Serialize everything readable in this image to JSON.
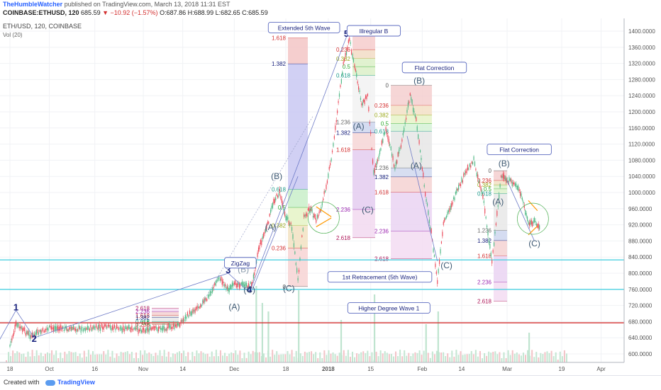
{
  "header": {
    "author": "TheHumbleWatcher",
    "published": "published on TradingView.com, March 13, 2018 11:31 EST",
    "symbol": "COINBASE:ETHUSD, 120",
    "price": "685.59",
    "change": "▼ −10.92 (−1.57%)",
    "ohlc": "O:687.86 H:688.99 L:682.65 C:685.59"
  },
  "legend": {
    "title": "ETH/USD, 120, COINBASE",
    "vol": "Vol (20)"
  },
  "footer": {
    "made_with": "Created with",
    "brand": "TradingView"
  },
  "colors": {
    "candle_up": "#53b987",
    "candle_down": "#eb4d5c",
    "wave_line": "#6e7bc7",
    "support_cyan": "#4dd0e1",
    "red_line": "#d32f2f",
    "fib_label_blue": "#1a237e"
  },
  "chart_data": {
    "type": "candlestick",
    "title": "ETH/USD, 120, COINBASE",
    "ylim": [
      560,
      1440
    ],
    "y_ticks": [
      "1400.0000",
      "1360.0000",
      "1320.0000",
      "1280.0000",
      "1240.0000",
      "1200.0000",
      "1160.0000",
      "1120.0000",
      "1080.0000",
      "1040.0000",
      "1000.0000",
      "960.0000",
      "920.0000",
      "880.0000",
      "840.0000",
      "800.0000",
      "760.0000",
      "720.0000",
      "680.0000",
      "640.0000",
      "600.0000"
    ],
    "x_ticks": [
      "18",
      "Oct",
      "16",
      "Nov",
      "14",
      "Dec",
      "18",
      "2018",
      "15",
      "Feb",
      "14",
      "Mar",
      "19",
      "Apr"
    ],
    "price_path": [
      [
        "2017-09-18",
        620
      ],
      [
        "2017-09-20",
        672
      ],
      [
        "2017-09-25",
        644
      ],
      [
        "2017-10-01",
        664
      ],
      [
        "2017-10-10",
        662
      ],
      [
        "2017-10-20",
        666
      ],
      [
        "2017-10-30",
        660
      ],
      [
        "2017-11-05",
        662
      ],
      [
        "2017-11-12",
        668
      ],
      [
        "2017-11-17",
        705
      ],
      [
        "2017-11-22",
        735
      ],
      [
        "2017-11-26",
        790
      ],
      [
        "2017-11-29",
        760
      ],
      [
        "2017-12-02",
        775
      ],
      [
        "2017-12-05",
        768
      ],
      [
        "2017-12-07",
        775
      ],
      [
        "2017-12-09",
        860
      ],
      [
        "2017-12-12",
        920
      ],
      [
        "2017-12-14",
        980
      ],
      [
        "2017-12-16",
        1000
      ],
      [
        "2017-12-18",
        940
      ],
      [
        "2017-12-20",
        915
      ],
      [
        "2017-12-22",
        780
      ],
      [
        "2017-12-24",
        940
      ],
      [
        "2017-12-26",
        960
      ],
      [
        "2017-12-28",
        930
      ],
      [
        "2017-12-30",
        970
      ],
      [
        "2018-01-02",
        1080
      ],
      [
        "2018-01-04",
        1200
      ],
      [
        "2018-01-06",
        1320
      ],
      [
        "2018-01-08",
        1380
      ],
      [
        "2018-01-10",
        1300
      ],
      [
        "2018-01-12",
        1220
      ],
      [
        "2018-01-14",
        1240
      ],
      [
        "2018-01-16",
        1050
      ],
      [
        "2018-01-18",
        1100
      ],
      [
        "2018-01-20",
        1160
      ],
      [
        "2018-01-23",
        1060
      ],
      [
        "2018-01-25",
        1120
      ],
      [
        "2018-01-28",
        1240
      ],
      [
        "2018-01-30",
        1180
      ],
      [
        "2018-02-02",
        1000
      ],
      [
        "2018-02-04",
        900
      ],
      [
        "2018-02-06",
        780
      ],
      [
        "2018-02-08",
        920
      ],
      [
        "2018-02-10",
        960
      ],
      [
        "2018-02-13",
        1010
      ],
      [
        "2018-02-16",
        1060
      ],
      [
        "2018-02-18",
        1080
      ],
      [
        "2018-02-21",
        990
      ],
      [
        "2018-02-24",
        830
      ],
      [
        "2018-02-27",
        1040
      ],
      [
        "2018-03-01",
        1030
      ],
      [
        "2018-03-04",
        1020
      ],
      [
        "2018-03-06",
        985
      ],
      [
        "2018-03-08",
        920
      ],
      [
        "2018-03-10",
        930
      ],
      [
        "2018-03-12",
        905
      ]
    ],
    "horizontal_lines": [
      {
        "price": 833,
        "color": "cyan"
      },
      {
        "price": 760,
        "color": "cyan"
      },
      {
        "price": 677,
        "color": "red"
      }
    ],
    "wave_labels": [
      {
        "text": "1",
        "date": "2017-09-20",
        "price": 708,
        "color": "#1a237e"
      },
      {
        "text": "2",
        "date": "2017-09-26",
        "price": 630,
        "color": "#1a237e"
      },
      {
        "text": "3",
        "date": "2017-11-29",
        "price": 800,
        "color": "#1a237e"
      },
      {
        "text": "4",
        "date": "2017-12-06",
        "price": 752,
        "color": "#1a237e"
      },
      {
        "text": "5",
        "date": "2018-01-07",
        "price": 1386,
        "color": "#1a237e"
      },
      {
        "text": "(A)",
        "date": "2017-12-01",
        "price": 710,
        "color": "#3f5a73"
      },
      {
        "text": "(B)",
        "date": "2017-12-04",
        "price": 803,
        "color": "#8899aa"
      },
      {
        "text": "(C)",
        "date": "2017-12-06",
        "price": 752,
        "color": "#3f5a73"
      },
      {
        "text": "(A)",
        "date": "2017-12-13",
        "price": 907,
        "color": "#3f5a73"
      },
      {
        "text": "(B)",
        "date": "2017-12-15",
        "price": 1033,
        "color": "#3f5a73"
      },
      {
        "text": "(C)",
        "date": "2017-12-19",
        "price": 755,
        "color": "#3f5a73"
      },
      {
        "text": "(A)",
        "date": "2018-01-11",
        "price": 1157,
        "color": "#3f5a73"
      },
      {
        "text": "(B)",
        "date": "2018-01-12",
        "price": 1398,
        "color": "#3f5a73"
      },
      {
        "text": "(C)",
        "date": "2018-01-14",
        "price": 950,
        "color": "#3f5a73"
      },
      {
        "text": "(A)",
        "date": "2018-01-30",
        "price": 1060,
        "color": "#3f5a73"
      },
      {
        "text": "(B)",
        "date": "2018-01-31",
        "price": 1270,
        "color": "#3f5a73"
      },
      {
        "text": "(C)",
        "date": "2018-02-09",
        "price": 812,
        "color": "#3f5a73"
      },
      {
        "text": "(A)",
        "date": "2018-02-26",
        "price": 970,
        "color": "#3f5a73"
      },
      {
        "text": "(B)",
        "date": "2018-02-28",
        "price": 1065,
        "color": "#3f5a73"
      },
      {
        "text": "(C)",
        "date": "2018-03-10",
        "price": 867,
        "color": "#3f5a73"
      }
    ],
    "annotations": [
      {
        "text": "Extended 5th Wave",
        "date": "2017-12-24",
        "price": 1408
      },
      {
        "text": "Illregular B",
        "date": "2018-01-16",
        "price": 1400
      },
      {
        "text": "Flat Correction",
        "date": "2018-02-05",
        "price": 1309
      },
      {
        "text": "Flat Correction",
        "date": "2018-03-05",
        "price": 1106
      },
      {
        "text": "ZigZag",
        "date": "2017-12-03",
        "price": 825
      },
      {
        "text": "1st Retracement (5th Wave)",
        "date": "2018-01-18",
        "price": 790
      },
      {
        "text": "Higher Degree Wave 1",
        "date": "2018-01-21",
        "price": 713
      }
    ],
    "fib_sets": [
      {
        "levels": [
          {
            "t": "1.618",
            "p": 1383
          },
          {
            "t": "1.382",
            "p": 1319
          },
          {
            "t": "0.618",
            "p": 1008
          },
          {
            "t": "0.5",
            "p": 963
          },
          {
            "t": "0.382",
            "p": 918
          },
          {
            "t": "0.236",
            "p": 862
          },
          {
            "t": "0",
            "p": 767
          }
        ]
      },
      {
        "levels": [
          {
            "t": "0.236",
            "p": 1354
          },
          {
            "t": "0.382",
            "p": 1332
          },
          {
            "t": "0.5",
            "p": 1312
          },
          {
            "t": "0.618",
            "p": 1290
          },
          {
            "t": "1.236",
            "p": 1175
          },
          {
            "t": "1.382",
            "p": 1148
          },
          {
            "t": "1.618",
            "p": 1106
          },
          {
            "t": "2.236",
            "p": 958
          },
          {
            "t": "2.618",
            "p": 888
          }
        ]
      },
      {
        "levels": [
          {
            "t": "0",
            "p": 1266
          },
          {
            "t": "0.236",
            "p": 1216
          },
          {
            "t": "0.382",
            "p": 1192
          },
          {
            "t": "0.5",
            "p": 1171
          },
          {
            "t": "0.618",
            "p": 1152
          },
          {
            "t": "1.236",
            "p": 1061
          },
          {
            "t": "1.382",
            "p": 1039
          },
          {
            "t": "1.618",
            "p": 1001
          },
          {
            "t": "2.236",
            "p": 904
          },
          {
            "t": "2.618",
            "p": 836
          }
        ]
      },
      {
        "levels": [
          {
            "t": "0",
            "p": 1054
          },
          {
            "t": "0.236",
            "p": 1030
          },
          {
            "t": "0.382",
            "p": 1019
          },
          {
            "t": "0.5",
            "p": 1009
          },
          {
            "t": "0.618",
            "p": 997
          },
          {
            "t": "1.236",
            "p": 906
          },
          {
            "t": "1.382",
            "p": 881
          },
          {
            "t": "1.618",
            "p": 843
          },
          {
            "t": "2.236",
            "p": 778
          },
          {
            "t": "2.618",
            "p": 731
          }
        ]
      },
      {
        "levels": [
          {
            "t": "2.618",
            "p": 713
          },
          {
            "t": "2.236",
            "p": 705
          },
          {
            "t": "1.618",
            "p": 695
          },
          {
            "t": "1.382",
            "p": 690
          },
          {
            "t": "0.618",
            "p": 680
          },
          {
            "t": "0.5",
            "p": 677
          },
          {
            "t": "0.236",
            "p": 673
          }
        ]
      }
    ],
    "volume_spikes": [
      [
        "2017-12-08",
        0.9
      ],
      [
        "2017-12-10",
        0.7
      ],
      [
        "2017-12-12",
        0.6
      ],
      [
        "2017-12-22",
        0.85
      ],
      [
        "2018-01-05",
        0.5
      ],
      [
        "2018-01-16",
        0.8
      ],
      [
        "2018-02-02",
        0.45
      ],
      [
        "2018-02-06",
        0.6
      ],
      [
        "2018-03-08",
        0.35
      ]
    ]
  }
}
